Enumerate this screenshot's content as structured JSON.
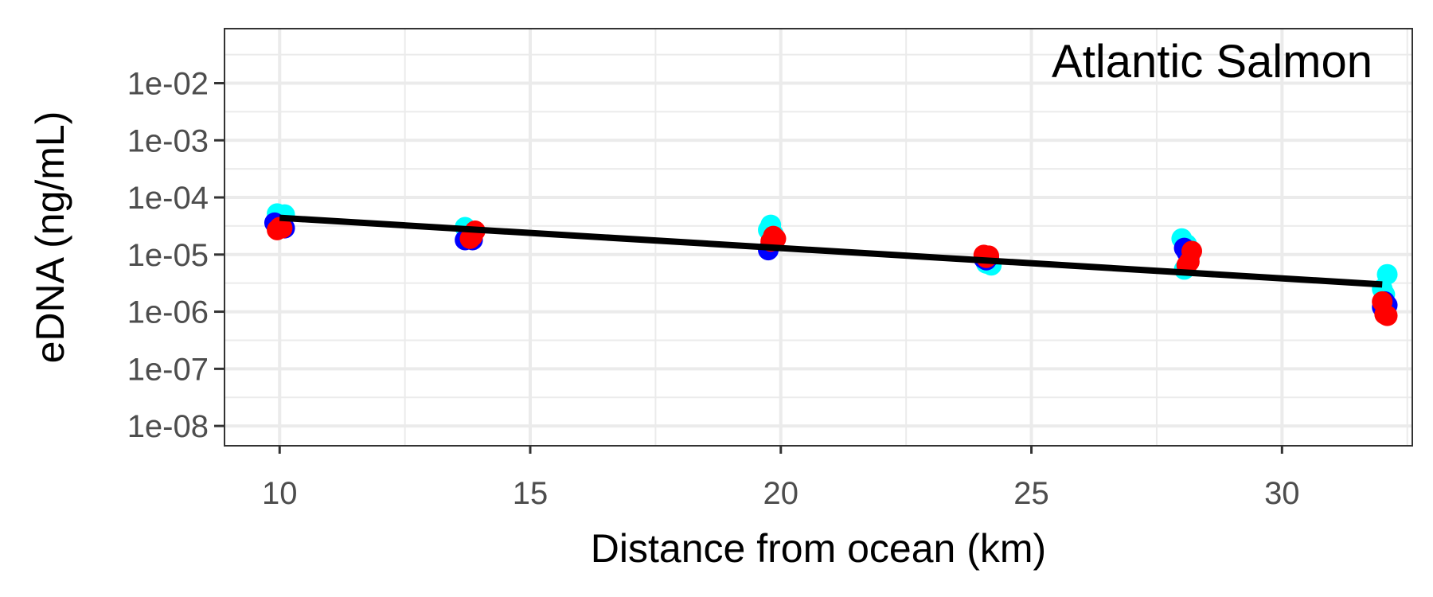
{
  "chart_data": {
    "type": "scatter",
    "annotation": "Atlantic Salmon",
    "xlabel": "Distance from ocean (km)",
    "ylabel": "eDNA (ng/mL)",
    "x_scale": "linear",
    "y_scale": "log10",
    "xlim": [
      8.9,
      32.6
    ],
    "ylim": [
      4.5e-09,
      0.09
    ],
    "x_ticks": [
      10,
      15,
      20,
      25,
      30
    ],
    "x_tick_labels": [
      "10",
      "15",
      "20",
      "25",
      "30"
    ],
    "y_ticks": [
      1e-08,
      1e-07,
      1e-06,
      1e-05,
      0.0001,
      0.001,
      0.01
    ],
    "y_tick_labels": [
      "1e-08",
      "1e-07",
      "1e-06",
      "1e-05",
      "1e-04",
      "1e-03",
      "1e-02"
    ],
    "grid": true,
    "series": [
      {
        "color": "#00FFFF",
        "points": [
          [
            9.95,
            5.2e-05
          ],
          [
            10.1,
            5e-05
          ],
          [
            10.0,
            4.2e-05
          ],
          [
            13.7,
            3e-05
          ],
          [
            13.8,
            2.6e-05
          ],
          [
            13.75,
            2.2e-05
          ],
          [
            19.8,
            3.3e-05
          ],
          [
            19.75,
            2.7e-05
          ],
          [
            19.85,
            2.3e-05
          ],
          [
            24.1,
            7e-06
          ],
          [
            24.2,
            6.5e-06
          ],
          [
            24.15,
            7.5e-06
          ],
          [
            28.0,
            1.9e-05
          ],
          [
            28.1,
            1.5e-05
          ],
          [
            28.05,
            5.5e-06
          ],
          [
            32.1,
            4.5e-06
          ],
          [
            32.05,
            2e-06
          ],
          [
            32.0,
            2.5e-06
          ]
        ]
      },
      {
        "color": "#0000FF",
        "points": [
          [
            9.9,
            3.6e-05
          ],
          [
            10.05,
            3.1e-05
          ],
          [
            10.1,
            2.9e-05
          ],
          [
            13.7,
            1.8e-05
          ],
          [
            13.85,
            1.8e-05
          ],
          [
            13.8,
            2e-05
          ],
          [
            19.75,
            1.2e-05
          ],
          [
            19.8,
            1.5e-05
          ],
          [
            19.85,
            1.7e-05
          ],
          [
            24.05,
            8.5e-06
          ],
          [
            24.15,
            9e-06
          ],
          [
            24.1,
            8e-06
          ],
          [
            28.05,
            1.3e-05
          ],
          [
            28.1,
            1.1e-05
          ],
          [
            28.15,
            9e-06
          ],
          [
            32.05,
            1.5e-06
          ],
          [
            32.1,
            1.3e-06
          ],
          [
            32.0,
            1.2e-06
          ]
        ]
      },
      {
        "color": "#FF0000",
        "points": [
          [
            10.0,
            3e-05
          ],
          [
            9.95,
            2.7e-05
          ],
          [
            10.05,
            2.9e-05
          ],
          [
            13.9,
            2.6e-05
          ],
          [
            13.85,
            2.1e-05
          ],
          [
            13.8,
            1.9e-05
          ],
          [
            19.85,
            2.1e-05
          ],
          [
            19.9,
            1.9e-05
          ],
          [
            19.8,
            1.7e-05
          ],
          [
            24.05,
            9.8e-06
          ],
          [
            24.15,
            9.5e-06
          ],
          [
            24.1,
            8.8e-06
          ],
          [
            28.2,
            1.15e-05
          ],
          [
            28.1,
            6.5e-06
          ],
          [
            28.15,
            7.5e-06
          ],
          [
            32.0,
            1.5e-06
          ],
          [
            32.05,
            9e-07
          ],
          [
            32.1,
            8.5e-07
          ]
        ]
      }
    ],
    "fit_line": {
      "color": "#000000",
      "x": [
        10.0,
        32.0
      ],
      "y": [
        4.4e-05,
        3e-06
      ]
    }
  }
}
